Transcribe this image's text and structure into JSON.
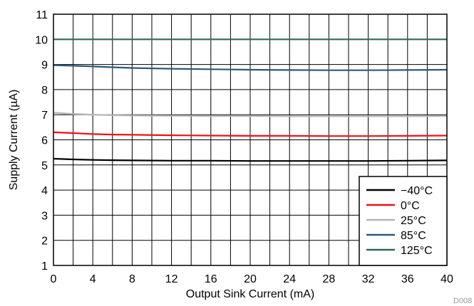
{
  "chart_data": {
    "type": "line",
    "title": "",
    "xlabel": "Output Sink Current (mA)",
    "ylabel": "Supply Current (µA)",
    "xlim": [
      0,
      40
    ],
    "ylim": [
      1,
      11
    ],
    "xticks": [
      "0",
      "4",
      "8",
      "12",
      "16",
      "20",
      "24",
      "28",
      "32",
      "36",
      "40"
    ],
    "yticks": [
      "1",
      "2",
      "3",
      "4",
      "5",
      "6",
      "7",
      "8",
      "9",
      "10",
      "11"
    ],
    "grid": true,
    "legend_position": "bottom-right",
    "series": [
      {
        "name": "−40°C",
        "color": "#000000",
        "x": [
          0,
          2,
          4,
          6,
          8,
          12,
          16,
          20,
          24,
          28,
          32,
          36,
          40
        ],
        "y": [
          5.25,
          5.22,
          5.2,
          5.19,
          5.18,
          5.17,
          5.17,
          5.16,
          5.16,
          5.16,
          5.16,
          5.17,
          5.18
        ]
      },
      {
        "name": "0°C",
        "color": "#e8141c",
        "x": [
          0,
          2,
          4,
          6,
          8,
          12,
          16,
          20,
          24,
          28,
          32,
          36,
          40
        ],
        "y": [
          6.3,
          6.27,
          6.23,
          6.21,
          6.2,
          6.18,
          6.17,
          6.16,
          6.16,
          6.15,
          6.15,
          6.16,
          6.17
        ]
      },
      {
        "name": "25°C",
        "color": "#b4b4b4",
        "x": [
          0,
          2,
          4,
          6,
          8,
          12,
          16,
          20,
          24,
          28,
          32,
          36,
          40
        ],
        "y": [
          7.08,
          7.03,
          7.0,
          6.98,
          6.97,
          6.96,
          6.95,
          6.95,
          6.94,
          6.94,
          6.94,
          6.94,
          6.95
        ]
      },
      {
        "name": "85°C",
        "color": "#2a5a7a",
        "x": [
          0,
          2,
          4,
          6,
          8,
          12,
          16,
          20,
          24,
          28,
          32,
          36,
          40
        ],
        "y": [
          8.97,
          8.95,
          8.92,
          8.89,
          8.86,
          8.83,
          8.81,
          8.79,
          8.78,
          8.77,
          8.77,
          8.78,
          8.79
        ]
      },
      {
        "name": "125°C",
        "color": "#2f6b4f",
        "x": [
          0,
          4,
          8,
          12,
          16,
          20,
          24,
          28,
          32,
          36,
          40
        ],
        "y": [
          10.0,
          10.0,
          10.0,
          10.0,
          10.0,
          10.0,
          10.0,
          10.0,
          10.0,
          10.0,
          10.0
        ]
      }
    ]
  },
  "figure_id": "D008"
}
